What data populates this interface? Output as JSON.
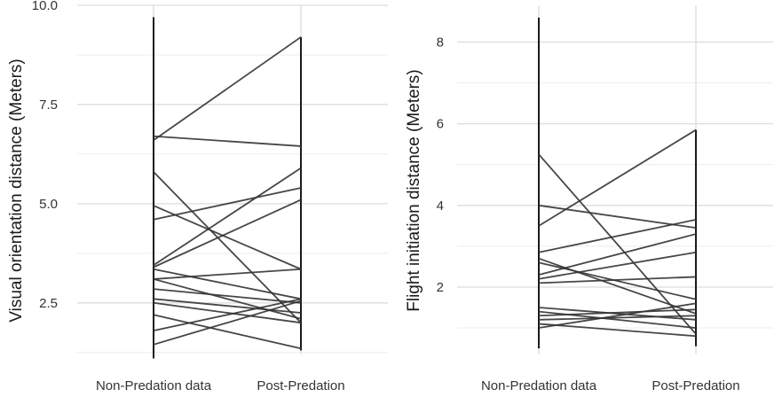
{
  "chart_data": [
    {
      "type": "line",
      "title": "",
      "xlabel": "",
      "ylabel": "Visual orientation distance (Meters)",
      "categories": [
        "Non-Predation data",
        "Post-Predation"
      ],
      "ylim": [
        1.2,
        10.0
      ],
      "yticks": [
        2.5,
        5.0,
        7.5,
        10.0
      ],
      "ytick_labels": [
        "2.5",
        "5.0",
        "7.5",
        "10.0"
      ],
      "grid": true,
      "line_color": "#333333",
      "series": [
        {
          "values": [
            6.6,
            9.2
          ]
        },
        {
          "values": [
            6.7,
            6.45
          ]
        },
        {
          "values": [
            5.8,
            2.0
          ]
        },
        {
          "values": [
            4.95,
            3.35
          ]
        },
        {
          "values": [
            4.6,
            5.4
          ]
        },
        {
          "values": [
            3.45,
            5.9
          ]
        },
        {
          "values": [
            3.4,
            5.1
          ]
        },
        {
          "values": [
            3.35,
            2.6
          ]
        },
        {
          "values": [
            3.1,
            3.35
          ]
        },
        {
          "values": [
            3.1,
            2.1
          ]
        },
        {
          "values": [
            2.85,
            2.5
          ]
        },
        {
          "values": [
            2.6,
            2.25
          ]
        },
        {
          "values": [
            2.5,
            2.0
          ]
        },
        {
          "values": [
            2.2,
            1.35
          ]
        },
        {
          "values": [
            1.8,
            2.6
          ]
        },
        {
          "values": [
            1.45,
            2.55
          ]
        }
      ],
      "stems": [
        {
          "category": "Non-Predation data",
          "range": [
            1.1,
            9.7
          ]
        },
        {
          "category": "Post-Predation",
          "range": [
            1.3,
            9.2
          ]
        }
      ]
    },
    {
      "type": "line",
      "title": "",
      "xlabel": "",
      "ylabel": "Flight initiation distance (Meters)",
      "categories": [
        "Non-Predation data",
        "Post-Predation"
      ],
      "ylim": [
        0.35,
        8.9
      ],
      "yticks": [
        2,
        4,
        6,
        8
      ],
      "ytick_labels": [
        "2",
        "4",
        "6",
        "8"
      ],
      "grid": true,
      "line_color": "#333333",
      "series": [
        {
          "values": [
            5.25,
            0.85
          ]
        },
        {
          "values": [
            4.0,
            3.45
          ]
        },
        {
          "values": [
            3.5,
            5.85
          ]
        },
        {
          "values": [
            2.85,
            3.65
          ]
        },
        {
          "values": [
            2.7,
            1.35
          ]
        },
        {
          "values": [
            2.6,
            1.7
          ]
        },
        {
          "values": [
            2.3,
            3.3
          ]
        },
        {
          "values": [
            2.2,
            2.85
          ]
        },
        {
          "values": [
            2.1,
            2.25
          ]
        },
        {
          "values": [
            1.5,
            1.2
          ]
        },
        {
          "values": [
            1.4,
            1.0
          ]
        },
        {
          "values": [
            1.3,
            1.45
          ]
        },
        {
          "values": [
            1.2,
            1.3
          ]
        },
        {
          "values": [
            1.1,
            0.8
          ]
        },
        {
          "values": [
            1.0,
            1.6
          ]
        }
      ],
      "stems": [
        {
          "category": "Non-Predation data",
          "range": [
            0.5,
            8.6
          ]
        },
        {
          "category": "Post-Predation",
          "range": [
            0.55,
            5.85
          ]
        }
      ]
    }
  ]
}
